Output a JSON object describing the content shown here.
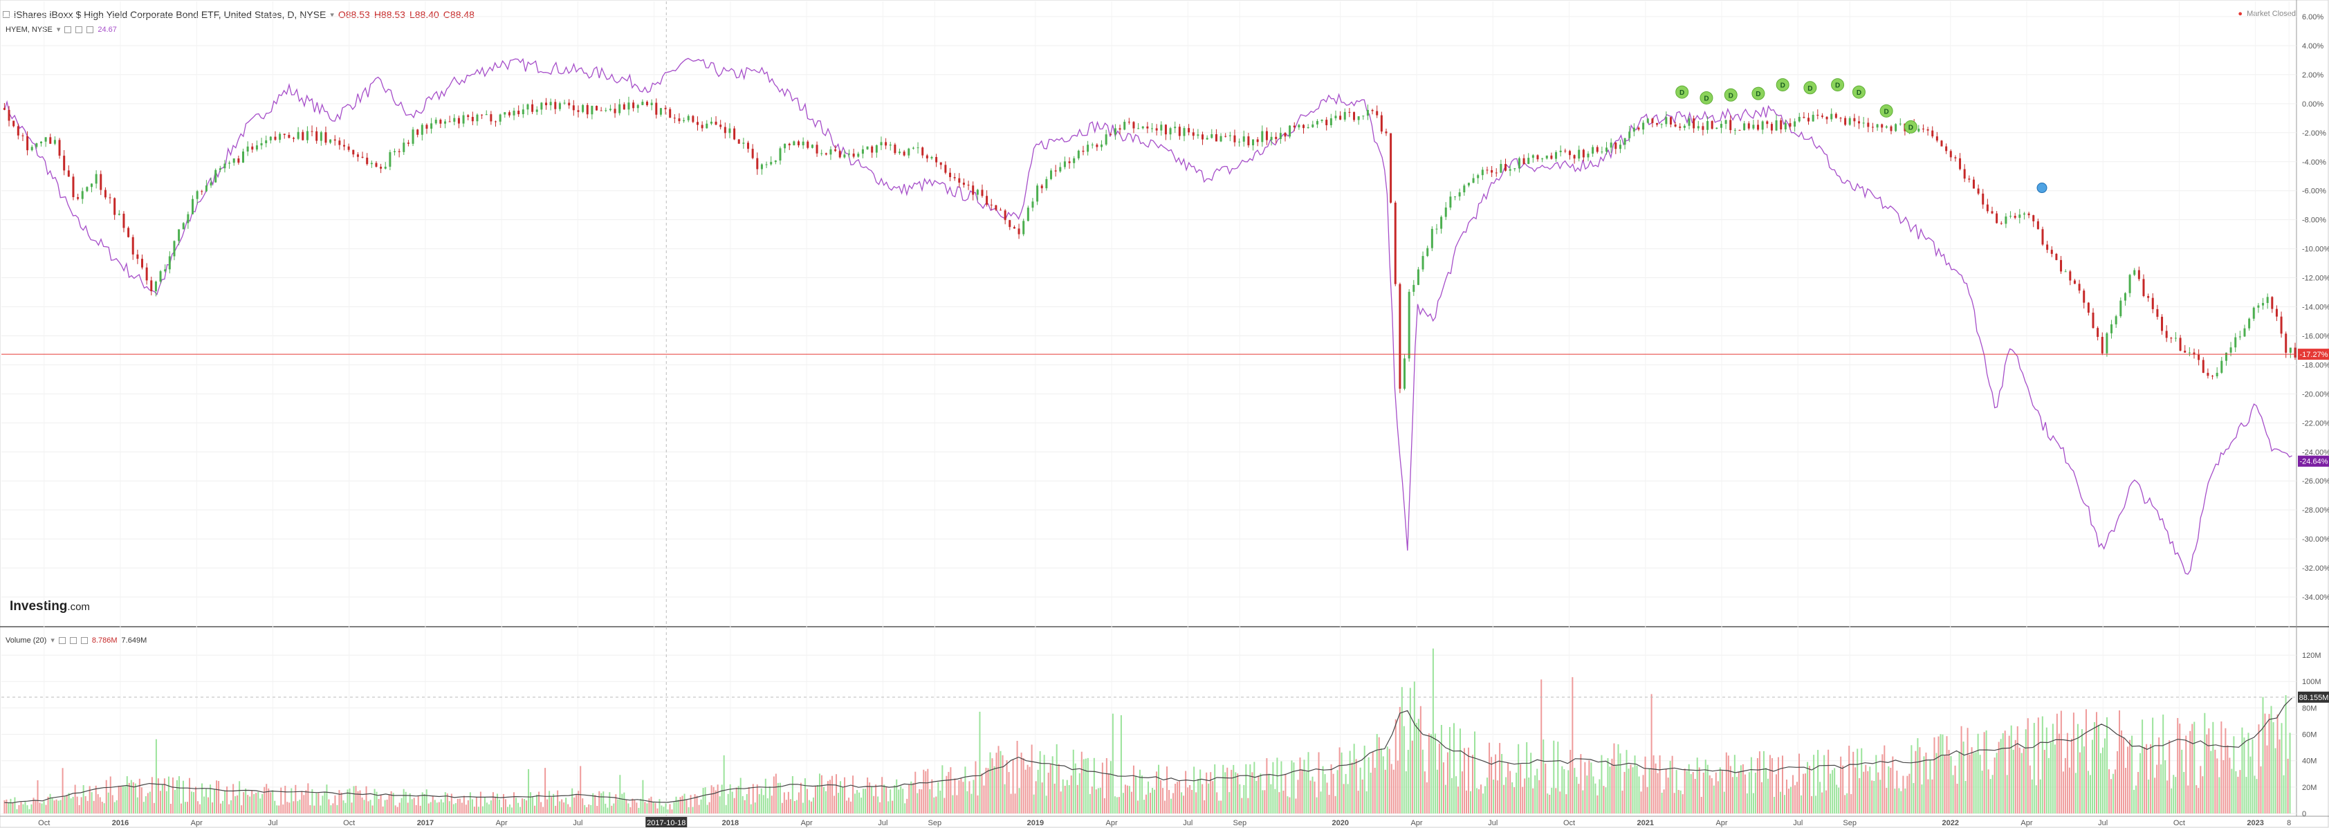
{
  "header": {
    "instrument": "iShares iBoxx $ High Yield Corporate Bond ETF, United States, D, NYSE",
    "open": "O88.53",
    "high": "H88.53",
    "low": "L88.40",
    "close": "C88.48",
    "compare_symbol": "HYEM, NYSE",
    "compare_value": "24.67",
    "market_status": "Market Closed"
  },
  "volume_header": {
    "label": "Volume (20)",
    "value1": "8.786M",
    "value2": "7.649M"
  },
  "crosshair_date": "2017-10-18",
  "logo": {
    "brand": "Investing",
    "suffix": ".com"
  },
  "colors": {
    "up": "#4caf50",
    "down": "#c62828",
    "compare": "#a64ec9",
    "last_price": "#e53935",
    "compare_badge": "#7b1fa2",
    "volume_up": "#9be39b",
    "volume_down": "#ef9a9a"
  },
  "chart_data": [
    {
      "type": "line",
      "title": "iShares iBoxx $ High Yield Corporate Bond ETF, United States, D, NYSE",
      "xlabel": "",
      "ylabel": "",
      "x_ticks": [
        "Oct",
        "2016",
        "Apr",
        "Jul",
        "Oct",
        "2017",
        "Apr",
        "Jul",
        "Oct",
        "2018",
        "Apr",
        "Jul",
        "Sep",
        "2019",
        "Apr",
        "Jul",
        "Sep",
        "2020",
        "Apr",
        "Jul",
        "Oct",
        "2021",
        "Apr",
        "Jul",
        "Sep",
        "2022",
        "Apr",
        "Jul",
        "Oct",
        "2023",
        "8"
      ],
      "y_ticks": [
        "6.00%",
        "4.00%",
        "2.00%",
        "0.00%",
        "-2.00%",
        "-4.00%",
        "-6.00%",
        "-8.00%",
        "-10.00%",
        "-12.00%",
        "-14.00%",
        "-16.00%",
        "-18.00%",
        "-20.00%",
        "-22.00%",
        "-24.00%",
        "-26.00%",
        "-28.00%",
        "-30.00%",
        "-32.00%",
        "-34.00%"
      ],
      "ylim": [
        -35,
        7
      ],
      "x_range": [
        2015.61,
        2023.13
      ],
      "series": [
        {
          "name": "iShares iBoxx $ High Yield Corporate Bond ETF",
          "style": "candles",
          "x": [
            2015.62,
            2015.7,
            2015.78,
            2015.85,
            2015.92,
            2016.0,
            2016.05,
            2016.1,
            2016.15,
            2016.25,
            2016.4,
            2016.55,
            2016.7,
            2016.85,
            2016.92,
            2017.0,
            2017.2,
            2017.4,
            2017.55,
            2017.7,
            2017.85,
            2018.0,
            2018.1,
            2018.2,
            2018.35,
            2018.5,
            2018.65,
            2018.8,
            2018.95,
            2019.0,
            2019.1,
            2019.3,
            2019.5,
            2019.7,
            2019.9,
            2020.1,
            2020.15,
            2020.18,
            2020.2,
            2020.22,
            2020.25,
            2020.3,
            2020.35,
            2020.45,
            2020.6,
            2020.75,
            2020.9,
            2021.0,
            2021.2,
            2021.4,
            2021.6,
            2021.8,
            2021.95,
            2022.05,
            2022.15,
            2022.25,
            2022.35,
            2022.45,
            2022.5,
            2022.55,
            2022.6,
            2022.7,
            2022.78,
            2022.85,
            2022.92,
            2023.0,
            2023.05,
            2023.1,
            2023.13
          ],
          "y": [
            -0.3,
            -3.0,
            -2.5,
            -6.5,
            -5.0,
            -8.0,
            -10.5,
            -13.0,
            -11.0,
            -6.0,
            -3.5,
            -2.0,
            -2.5,
            -4.5,
            -2.8,
            -1.5,
            -1.0,
            0.0,
            -0.5,
            0.0,
            -1.0,
            -2.0,
            -4.5,
            -2.5,
            -3.5,
            -3.0,
            -3.5,
            -6.0,
            -9.0,
            -6.0,
            -4.0,
            -1.5,
            -2.0,
            -2.5,
            -1.5,
            -0.5,
            -2.0,
            -12.0,
            -22.0,
            -13.0,
            -12.0,
            -9.0,
            -7.0,
            -5.0,
            -4.0,
            -3.5,
            -3.0,
            -1.0,
            -1.5,
            -1.5,
            -1.0,
            -1.5,
            -2.0,
            -5.0,
            -8.0,
            -7.5,
            -11.0,
            -14.0,
            -17.0,
            -14.0,
            -11.5,
            -16.0,
            -17.0,
            -19.0,
            -17.0,
            -14.0,
            -13.5,
            -17.0,
            -17.3
          ]
        },
        {
          "name": "HYEM, NYSE",
          "style": "line",
          "x": [
            2015.62,
            2015.75,
            2015.85,
            2015.95,
            2016.05,
            2016.12,
            2016.25,
            2016.4,
            2016.55,
            2016.7,
            2016.85,
            2016.95,
            2017.1,
            2017.25,
            2017.4,
            2017.6,
            2017.75,
            2017.85,
            2018.0,
            2018.1,
            2018.25,
            2018.4,
            2018.55,
            2018.65,
            2018.8,
            2018.95,
            2019.0,
            2019.2,
            2019.4,
            2019.55,
            2019.65,
            2019.8,
            2019.95,
            2020.08,
            2020.15,
            2020.18,
            2020.22,
            2020.25,
            2020.3,
            2020.4,
            2020.55,
            2020.7,
            2020.85,
            2021.0,
            2021.2,
            2021.4,
            2021.55,
            2021.65,
            2021.75,
            2021.85,
            2021.95,
            2022.05,
            2022.15,
            2022.2,
            2022.3,
            2022.4,
            2022.5,
            2022.6,
            2022.7,
            2022.78,
            2022.85,
            2022.92,
            2023.0,
            2023.05,
            2023.1,
            2023.13
          ],
          "y": [
            0.0,
            -4.0,
            -8.0,
            -10.0,
            -12.0,
            -13.0,
            -7.0,
            -2.0,
            1.0,
            -1.0,
            1.5,
            -1.0,
            1.5,
            2.8,
            2.5,
            2.0,
            1.0,
            3.0,
            2.0,
            2.2,
            -0.5,
            -4.0,
            -6.0,
            -5.5,
            -6.5,
            -8.0,
            -3.0,
            -1.5,
            -3.0,
            -5.0,
            -4.5,
            -2.5,
            0.5,
            0.0,
            -5.0,
            -20.0,
            -31.0,
            -14.0,
            -15.0,
            -9.0,
            -4.0,
            -4.5,
            -4.0,
            -1.0,
            -1.0,
            -0.5,
            -2.5,
            -5.5,
            -6.5,
            -8.0,
            -10.0,
            -12.0,
            -21.0,
            -16.5,
            -22.0,
            -25.0,
            -31.0,
            -26.0,
            -29.0,
            -32.5,
            -26.0,
            -23.0,
            -21.0,
            -23.5,
            -24.2,
            -24.6
          ]
        }
      ],
      "annotations": {
        "last_price_label": "-17.27%",
        "last_price_value": -17.27,
        "compare_label": "-24.64%",
        "compare_value": -24.64,
        "dividend_marker": "D",
        "dividend_x": [
          2021.12,
          2021.2,
          2021.28,
          2021.37,
          2021.45,
          2021.54,
          2021.63,
          2021.7,
          2021.79,
          2021.87
        ],
        "dividend_y": [
          0.8,
          0.4,
          0.6,
          0.7,
          1.3,
          1.1,
          1.3,
          0.8,
          -0.5,
          -1.6
        ],
        "split_marker_x": 2022.3,
        "split_marker_y": -5.8
      },
      "grid": true,
      "legend": "top-left"
    },
    {
      "type": "bar",
      "title": "Volume (20)",
      "y_ticks": [
        "120M",
        "100M",
        "80M",
        "60M",
        "40M",
        "20M",
        "0"
      ],
      "ylim": [
        0,
        130
      ],
      "x_range": [
        2015.61,
        2023.13
      ],
      "last_volume_label": "88.155M",
      "last_volume_value": 88.155,
      "volume_profile_x": [
        2015.62,
        2015.75,
        2015.9,
        2016.0,
        2016.1,
        2016.3,
        2016.6,
        2016.9,
        2017.2,
        2017.5,
        2017.8,
        2018.0,
        2018.2,
        2018.5,
        2018.8,
        2018.95,
        2019.2,
        2019.5,
        2019.8,
        2020.0,
        2020.15,
        2020.2,
        2020.3,
        2020.5,
        2020.8,
        2021.0,
        2021.3,
        2021.6,
        2021.9,
        2022.0,
        2022.2,
        2022.4,
        2022.5,
        2022.6,
        2022.8,
        2022.95,
        2023.05,
        2023.13
      ],
      "volume_profile_y": [
        8,
        10,
        18,
        20,
        22,
        18,
        16,
        14,
        12,
        14,
        8,
        18,
        22,
        20,
        28,
        42,
        30,
        25,
        30,
        35,
        50,
        80,
        55,
        38,
        40,
        35,
        32,
        35,
        40,
        45,
        50,
        55,
        70,
        50,
        55,
        50,
        70,
        88
      ]
    }
  ]
}
